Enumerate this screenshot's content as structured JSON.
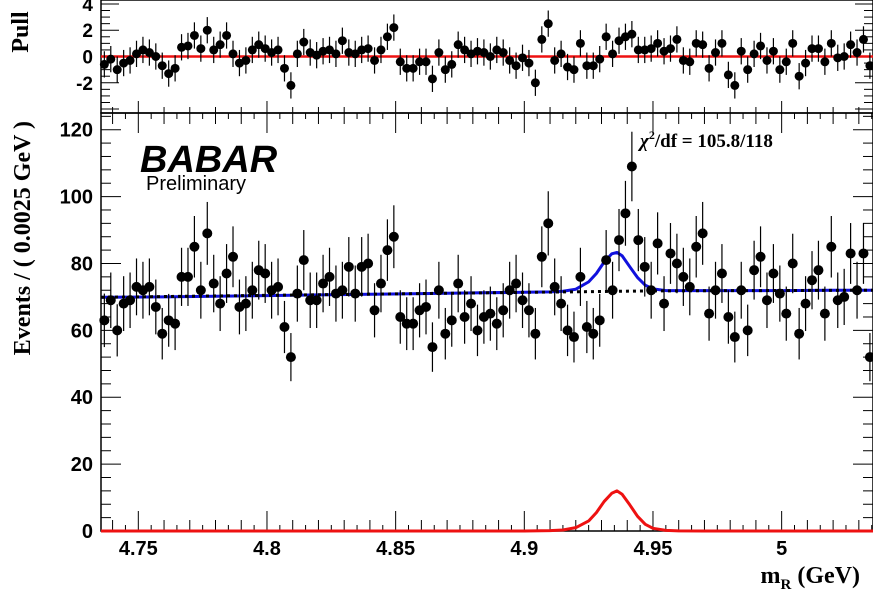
{
  "chart_data": [
    {
      "type": "scatter",
      "panel": "pull",
      "ylabel": "Pull",
      "ylim": [
        -4.3,
        4.3
      ],
      "yticks": [
        4,
        2,
        0,
        -2
      ],
      "ytick_labels": [
        "4",
        "2",
        "0",
        "-2"
      ],
      "xlim": [
        4.7355,
        5.0355
      ],
      "series": [
        {
          "kind": "points",
          "x": [
            4.7368,
            4.7393,
            4.7418,
            4.7443,
            4.7468,
            4.7493,
            4.7518,
            4.7543,
            4.7568,
            4.7593,
            4.7618,
            4.7643,
            4.7668,
            4.7693,
            4.7718,
            4.7743,
            4.7768,
            4.7793,
            4.7818,
            4.7843,
            4.7868,
            4.7893,
            4.7918,
            4.7943,
            4.7968,
            4.7993,
            4.8018,
            4.8043,
            4.8068,
            4.8093,
            4.8118,
            4.8143,
            4.8168,
            4.8193,
            4.8218,
            4.8243,
            4.8268,
            4.8293,
            4.8318,
            4.8343,
            4.8368,
            4.8393,
            4.8418,
            4.8443,
            4.8468,
            4.8493,
            4.8518,
            4.8543,
            4.8568,
            4.8593,
            4.8618,
            4.8643,
            4.8668,
            4.8693,
            4.8718,
            4.8743,
            4.8768,
            4.8793,
            4.8818,
            4.8843,
            4.8868,
            4.8893,
            4.8918,
            4.8943,
            4.8968,
            4.8993,
            4.9018,
            4.9043,
            4.9068,
            4.9093,
            4.9118,
            4.9143,
            4.9168,
            4.9193,
            4.9218,
            4.9243,
            4.9268,
            4.9293,
            4.9318,
            4.9343,
            4.9368,
            4.9393,
            4.9418,
            4.9443,
            4.9468,
            4.9493,
            4.9518,
            4.9543,
            4.9568,
            4.9593,
            4.9618,
            4.9643,
            4.9668,
            4.9693,
            4.9718,
            4.9743,
            4.9768,
            4.9793,
            4.9818,
            4.9843,
            4.9868,
            4.9893,
            4.9918,
            4.9943,
            4.9968,
            4.9993,
            5.0018,
            5.0043,
            5.0068,
            5.0093,
            5.0118,
            5.0143,
            5.0168,
            5.0193,
            5.0218,
            5.0243,
            5.0268,
            5.0293,
            5.0318,
            5.0343
          ],
          "y": [
            -0.6,
            -0.2,
            -1.0,
            -0.5,
            -0.3,
            0.2,
            0.5,
            0.3,
            0.0,
            -0.7,
            -1.3,
            -0.9,
            0.7,
            0.8,
            1.6,
            0.6,
            2.0,
            0.5,
            0.9,
            1.6,
            0.2,
            -0.5,
            -0.3,
            0.5,
            0.9,
            0.6,
            0.3,
            0.5,
            -0.9,
            -2.2,
            0.2,
            1.1,
            0.3,
            0.1,
            0.4,
            0.5,
            0.2,
            1.2,
            0.3,
            0.2,
            0.5,
            0.6,
            -0.3,
            0.5,
            1.5,
            2.2,
            -0.4,
            -0.9,
            -0.9,
            -0.4,
            -0.4,
            -1.7,
            0.3,
            -1.0,
            -0.6,
            0.9,
            0.5,
            0.2,
            0.4,
            0.3,
            0.0,
            0.5,
            0.3,
            -0.3,
            -0.7,
            -0.1,
            -0.5,
            -2.0,
            1.3,
            2.5,
            -0.3,
            0.2,
            -0.8,
            -1.0,
            1.0,
            -0.7,
            -0.7,
            -0.2,
            1.5,
            0.2,
            1.2,
            1.5,
            1.7,
            0.5,
            0.5,
            0.6,
            1.0,
            0.4,
            0.6,
            1.3,
            -0.3,
            -0.4,
            1.0,
            0.9,
            -0.9,
            0.3,
            1.0,
            -1.4,
            -2.2,
            0.4,
            -1.0,
            0.2,
            0.8,
            -0.3,
            0.4,
            -1.0,
            -0.4,
            1.0,
            -1.5,
            -0.5,
            0.6,
            0.6,
            -0.4,
            1.0,
            -0.1,
            0.0,
            0.9,
            0.3,
            1.3,
            -0.7
          ]
        },
        {
          "kind": "line",
          "name": "zero line",
          "color": "#ee1111",
          "x": [
            4.7355,
            5.0355
          ],
          "y": [
            0,
            0
          ]
        }
      ]
    },
    {
      "type": "scatter",
      "panel": "main",
      "xlabel": "m",
      "xlabel_sub": "R",
      "xlabel_unit": " (GeV)",
      "ylabel": "Events / ( 0.0025 GeV )",
      "xlim": [
        4.7355,
        5.0355
      ],
      "ylim": [
        0,
        125
      ],
      "xticks": [
        4.75,
        4.8,
        4.85,
        4.9,
        4.95,
        5.0
      ],
      "xtick_labels": [
        "4.75",
        "4.8",
        "4.85",
        "4.9",
        "4.95",
        "5"
      ],
      "yticks": [
        0,
        20,
        40,
        60,
        80,
        100,
        120
      ],
      "ytick_labels": [
        "0",
        "20",
        "40",
        "60",
        "80",
        "100",
        "120"
      ],
      "grid": false,
      "annotations": {
        "logo": "BABAR",
        "logo_sub": "Preliminary",
        "chi2_symbol": "χ",
        "chi2_power": "2",
        "chi2_text": "/df = 105.8/118"
      },
      "series": [
        {
          "kind": "points_with_errors",
          "color": "#000000",
          "x": [
            4.7368,
            4.7393,
            4.7418,
            4.7443,
            4.7468,
            4.7493,
            4.7518,
            4.7543,
            4.7568,
            4.7593,
            4.7618,
            4.7643,
            4.7668,
            4.7693,
            4.7718,
            4.7743,
            4.7768,
            4.7793,
            4.7818,
            4.7843,
            4.7868,
            4.7893,
            4.7918,
            4.7943,
            4.7968,
            4.7993,
            4.8018,
            4.8043,
            4.8068,
            4.8093,
            4.8118,
            4.8143,
            4.8168,
            4.8193,
            4.8218,
            4.8243,
            4.8268,
            4.8293,
            4.8318,
            4.8343,
            4.8368,
            4.8393,
            4.8418,
            4.8443,
            4.8468,
            4.8493,
            4.8518,
            4.8543,
            4.8568,
            4.8593,
            4.8618,
            4.8643,
            4.8668,
            4.8693,
            4.8718,
            4.8743,
            4.8768,
            4.8793,
            4.8818,
            4.8843,
            4.8868,
            4.8893,
            4.8918,
            4.8943,
            4.8968,
            4.8993,
            4.9018,
            4.9043,
            4.9068,
            4.9093,
            4.9118,
            4.9143,
            4.9168,
            4.9193,
            4.9218,
            4.9243,
            4.9268,
            4.9293,
            4.9318,
            4.9343,
            4.9368,
            4.9393,
            4.9418,
            4.9443,
            4.9468,
            4.9493,
            4.9518,
            4.9543,
            4.9568,
            4.9593,
            4.9618,
            4.9643,
            4.9668,
            4.9693,
            4.9718,
            4.9743,
            4.9768,
            4.9793,
            4.9818,
            4.9843,
            4.9868,
            4.9893,
            4.9918,
            4.9943,
            4.9968,
            4.9993,
            5.0018,
            5.0043,
            5.0068,
            5.0093,
            5.0118,
            5.0143,
            5.0168,
            5.0193,
            5.0218,
            5.0243,
            5.0268,
            5.0293,
            5.0318,
            5.0343
          ],
          "y": [
            63,
            69,
            60,
            68,
            69,
            73,
            72,
            73,
            67,
            59,
            63,
            62,
            76,
            76,
            85,
            72,
            89,
            74,
            68,
            77,
            82,
            67,
            68,
            72,
            78,
            77,
            72,
            73,
            61,
            52,
            71,
            81,
            69,
            69,
            74,
            76,
            71,
            72,
            79,
            71,
            79,
            80,
            66,
            74,
            84,
            88,
            64,
            62,
            62,
            66,
            67,
            55,
            72,
            59,
            63,
            74,
            64,
            68,
            60,
            64,
            65,
            62,
            66,
            72,
            74,
            69,
            66,
            59,
            82,
            92,
            73,
            68,
            60,
            58,
            76,
            61,
            59,
            63,
            81,
            72,
            87,
            95,
            109,
            87,
            79,
            72,
            86,
            68,
            83,
            80,
            76,
            73,
            85,
            89,
            65,
            72,
            77,
            64,
            58,
            72,
            60,
            78,
            82,
            69,
            77,
            71,
            65,
            80,
            59,
            68,
            75,
            78,
            65,
            85,
            69,
            70,
            83,
            72,
            83,
            52
          ],
          "err": [
            8.0,
            8.3,
            7.8,
            8.2,
            8.3,
            8.5,
            8.5,
            8.5,
            8.2,
            7.7,
            7.9,
            7.9,
            8.7,
            8.7,
            9.2,
            8.5,
            9.4,
            8.6,
            8.2,
            8.8,
            9.1,
            8.2,
            8.2,
            8.5,
            8.8,
            8.8,
            8.5,
            8.5,
            7.8,
            7.2,
            8.4,
            9.0,
            8.3,
            8.3,
            8.6,
            8.7,
            8.4,
            8.5,
            8.9,
            8.4,
            8.9,
            8.9,
            8.1,
            8.6,
            9.2,
            9.4,
            8.0,
            7.9,
            7.9,
            8.1,
            8.2,
            7.4,
            8.5,
            7.7,
            7.9,
            8.6,
            8.0,
            8.2,
            7.7,
            8.0,
            8.1,
            7.9,
            8.1,
            8.5,
            8.6,
            8.3,
            8.1,
            7.7,
            9.1,
            9.6,
            8.5,
            8.2,
            7.7,
            7.6,
            8.7,
            7.8,
            7.7,
            7.9,
            9.0,
            8.5,
            9.3,
            9.7,
            10.4,
            9.3,
            8.9,
            8.5,
            9.3,
            8.2,
            9.1,
            8.9,
            8.7,
            8.5,
            9.2,
            9.4,
            8.1,
            8.5,
            8.8,
            8.0,
            7.6,
            8.5,
            7.7,
            8.8,
            9.1,
            8.3,
            8.8,
            8.4,
            8.1,
            8.9,
            7.7,
            8.2,
            8.7,
            8.8,
            8.1,
            9.2,
            8.3,
            8.4,
            9.1,
            8.5,
            9.1,
            7.2
          ]
        },
        {
          "kind": "line",
          "name": "total fit",
          "color": "#1111dd",
          "x": [
            4.7355,
            4.76,
            4.78,
            4.8,
            4.82,
            4.84,
            4.86,
            4.88,
            4.9,
            4.91,
            4.915,
            4.92,
            4.925,
            4.928,
            4.931,
            4.934,
            4.936,
            4.938,
            4.941,
            4.944,
            4.947,
            4.95,
            4.955,
            4.96,
            4.97,
            4.98,
            5.0,
            5.02,
            5.0355
          ],
          "y": [
            69.9,
            70.0,
            70.2,
            70.4,
            70.6,
            70.8,
            71.0,
            71.2,
            71.4,
            71.5,
            71.7,
            72.3,
            74.5,
            77.0,
            80.4,
            82.9,
            83.3,
            82.3,
            79.0,
            75.8,
            73.5,
            72.4,
            71.9,
            71.9,
            71.9,
            71.9,
            71.9,
            72.0,
            72.0
          ]
        },
        {
          "kind": "line",
          "name": "background",
          "color": "#000000",
          "dashed": true,
          "x": [
            4.7355,
            4.95,
            5.0355
          ],
          "y": [
            69.9,
            71.8,
            72.0
          ]
        },
        {
          "kind": "line",
          "name": "signal",
          "color": "#ee1111",
          "x": [
            4.7355,
            4.9,
            4.91,
            4.915,
            4.92,
            4.925,
            4.928,
            4.931,
            4.934,
            4.936,
            4.938,
            4.941,
            4.944,
            4.947,
            4.95,
            4.955,
            4.96,
            4.97,
            5.0355
          ],
          "y": [
            0,
            0,
            0.1,
            0.3,
            1.0,
            3.0,
            5.5,
            8.8,
            11.3,
            12.0,
            11.0,
            7.8,
            4.4,
            2.0,
            0.8,
            0.2,
            0.05,
            0,
            0
          ]
        }
      ]
    }
  ]
}
